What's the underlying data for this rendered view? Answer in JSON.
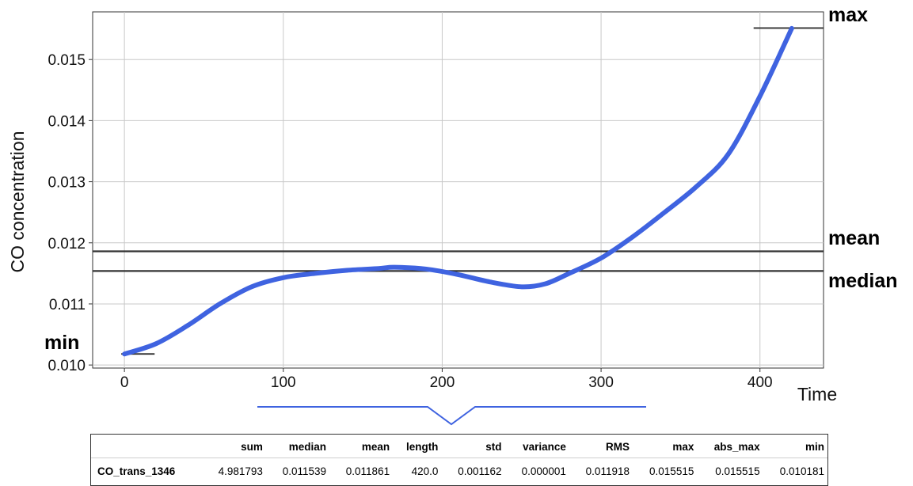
{
  "chart_data": {
    "type": "line",
    "xlabel": "Time",
    "ylabel": "CO concentration",
    "xlim": [
      -20,
      440
    ],
    "ylim": [
      0.00995,
      0.01578
    ],
    "xticks": [
      0,
      100,
      200,
      300,
      400
    ],
    "yticks": [
      0.01,
      0.011,
      0.012,
      0.013,
      0.014,
      0.015
    ],
    "xtick_labels": [
      "0",
      "100",
      "200",
      "300",
      "400"
    ],
    "ytick_labels": [
      "0.010",
      "0.011",
      "0.012",
      "0.013",
      "0.014",
      "0.015"
    ],
    "grid": true,
    "series": [
      {
        "color": "#3f63e0",
        "points": [
          [
            0,
            0.01018
          ],
          [
            20,
            0.01035
          ],
          [
            40,
            0.01065
          ],
          [
            60,
            0.011
          ],
          [
            80,
            0.01128
          ],
          [
            100,
            0.01143
          ],
          [
            120,
            0.0115
          ],
          [
            140,
            0.01155
          ],
          [
            160,
            0.01158
          ],
          [
            170,
            0.0116
          ],
          [
            190,
            0.01157
          ],
          [
            210,
            0.01148
          ],
          [
            230,
            0.01136
          ],
          [
            250,
            0.01128
          ],
          [
            265,
            0.01133
          ],
          [
            280,
            0.0115
          ],
          [
            300,
            0.01175
          ],
          [
            320,
            0.0121
          ],
          [
            340,
            0.0125
          ],
          [
            360,
            0.01292
          ],
          [
            380,
            0.01345
          ],
          [
            400,
            0.0144
          ],
          [
            420,
            0.01551
          ]
        ]
      }
    ],
    "reference_lines": [
      {
        "label": "max",
        "value": 0.015515,
        "x_range": [
          396,
          440
        ]
      },
      {
        "label": "mean",
        "value": 0.011861,
        "x_range": [
          -20,
          440
        ]
      },
      {
        "label": "median",
        "value": 0.011539,
        "x_range": [
          -20,
          440
        ]
      },
      {
        "label": "min",
        "value": 0.010181,
        "x_range": [
          -2,
          19
        ]
      }
    ]
  },
  "stats_table": {
    "columns": [
      "sum",
      "median",
      "mean",
      "length",
      "std",
      "variance",
      "RMS",
      "max",
      "abs_max",
      "min"
    ],
    "rows": [
      {
        "name": "CO_trans_1346",
        "values": [
          "4.981793",
          "0.011539",
          "0.011861",
          "420.0",
          "0.001162",
          "0.000001",
          "0.011918",
          "0.015515",
          "0.015515",
          "0.010181"
        ]
      }
    ]
  },
  "colors": {
    "line": "#3f63e0",
    "reference": "#333333",
    "grid": "#c8c8c8",
    "connector": "#3f63e0"
  }
}
